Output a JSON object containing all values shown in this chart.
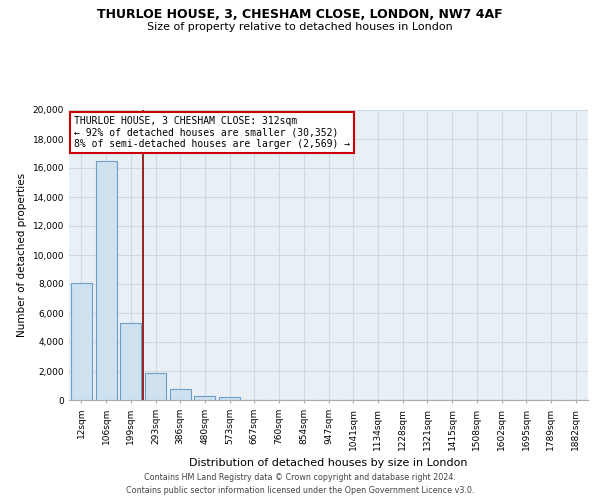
{
  "title": "THURLOE HOUSE, 3, CHESHAM CLOSE, LONDON, NW7 4AF",
  "subtitle": "Size of property relative to detached houses in London",
  "xlabel": "Distribution of detached houses by size in London",
  "ylabel": "Number of detached properties",
  "categories": [
    "12sqm",
    "106sqm",
    "199sqm",
    "293sqm",
    "386sqm",
    "480sqm",
    "573sqm",
    "667sqm",
    "760sqm",
    "854sqm",
    "947sqm",
    "1041sqm",
    "1134sqm",
    "1228sqm",
    "1321sqm",
    "1415sqm",
    "1508sqm",
    "1602sqm",
    "1695sqm",
    "1789sqm",
    "1882sqm"
  ],
  "values": [
    8100,
    16500,
    5300,
    1850,
    750,
    280,
    220,
    0,
    0,
    0,
    0,
    0,
    0,
    0,
    0,
    0,
    0,
    0,
    0,
    0,
    0
  ],
  "bar_facecolor": "#cfe0ef",
  "bar_edgecolor": "#6ca0c8",
  "vline_color": "#8b0000",
  "annotation_text_line1": "THURLOE HOUSE, 3 CHESHAM CLOSE: 312sqm",
  "annotation_text_line2": "← 92% of detached houses are smaller (30,352)",
  "annotation_text_line3": "8% of semi-detached houses are larger (2,569) →",
  "ylim": [
    0,
    20000
  ],
  "yticks": [
    0,
    2000,
    4000,
    6000,
    8000,
    10000,
    12000,
    14000,
    16000,
    18000,
    20000
  ],
  "grid_color": "#d0d8e4",
  "background_color": "#e8eff5",
  "footer_line1": "Contains HM Land Registry data © Crown copyright and database right 2024.",
  "footer_line2": "Contains public sector information licensed under the Open Government Licence v3.0.",
  "title_fontsize": 9,
  "subtitle_fontsize": 8,
  "ylabel_fontsize": 7.5,
  "xlabel_fontsize": 8,
  "tick_fontsize": 6.5,
  "footer_fontsize": 5.8,
  "annot_fontsize": 7
}
